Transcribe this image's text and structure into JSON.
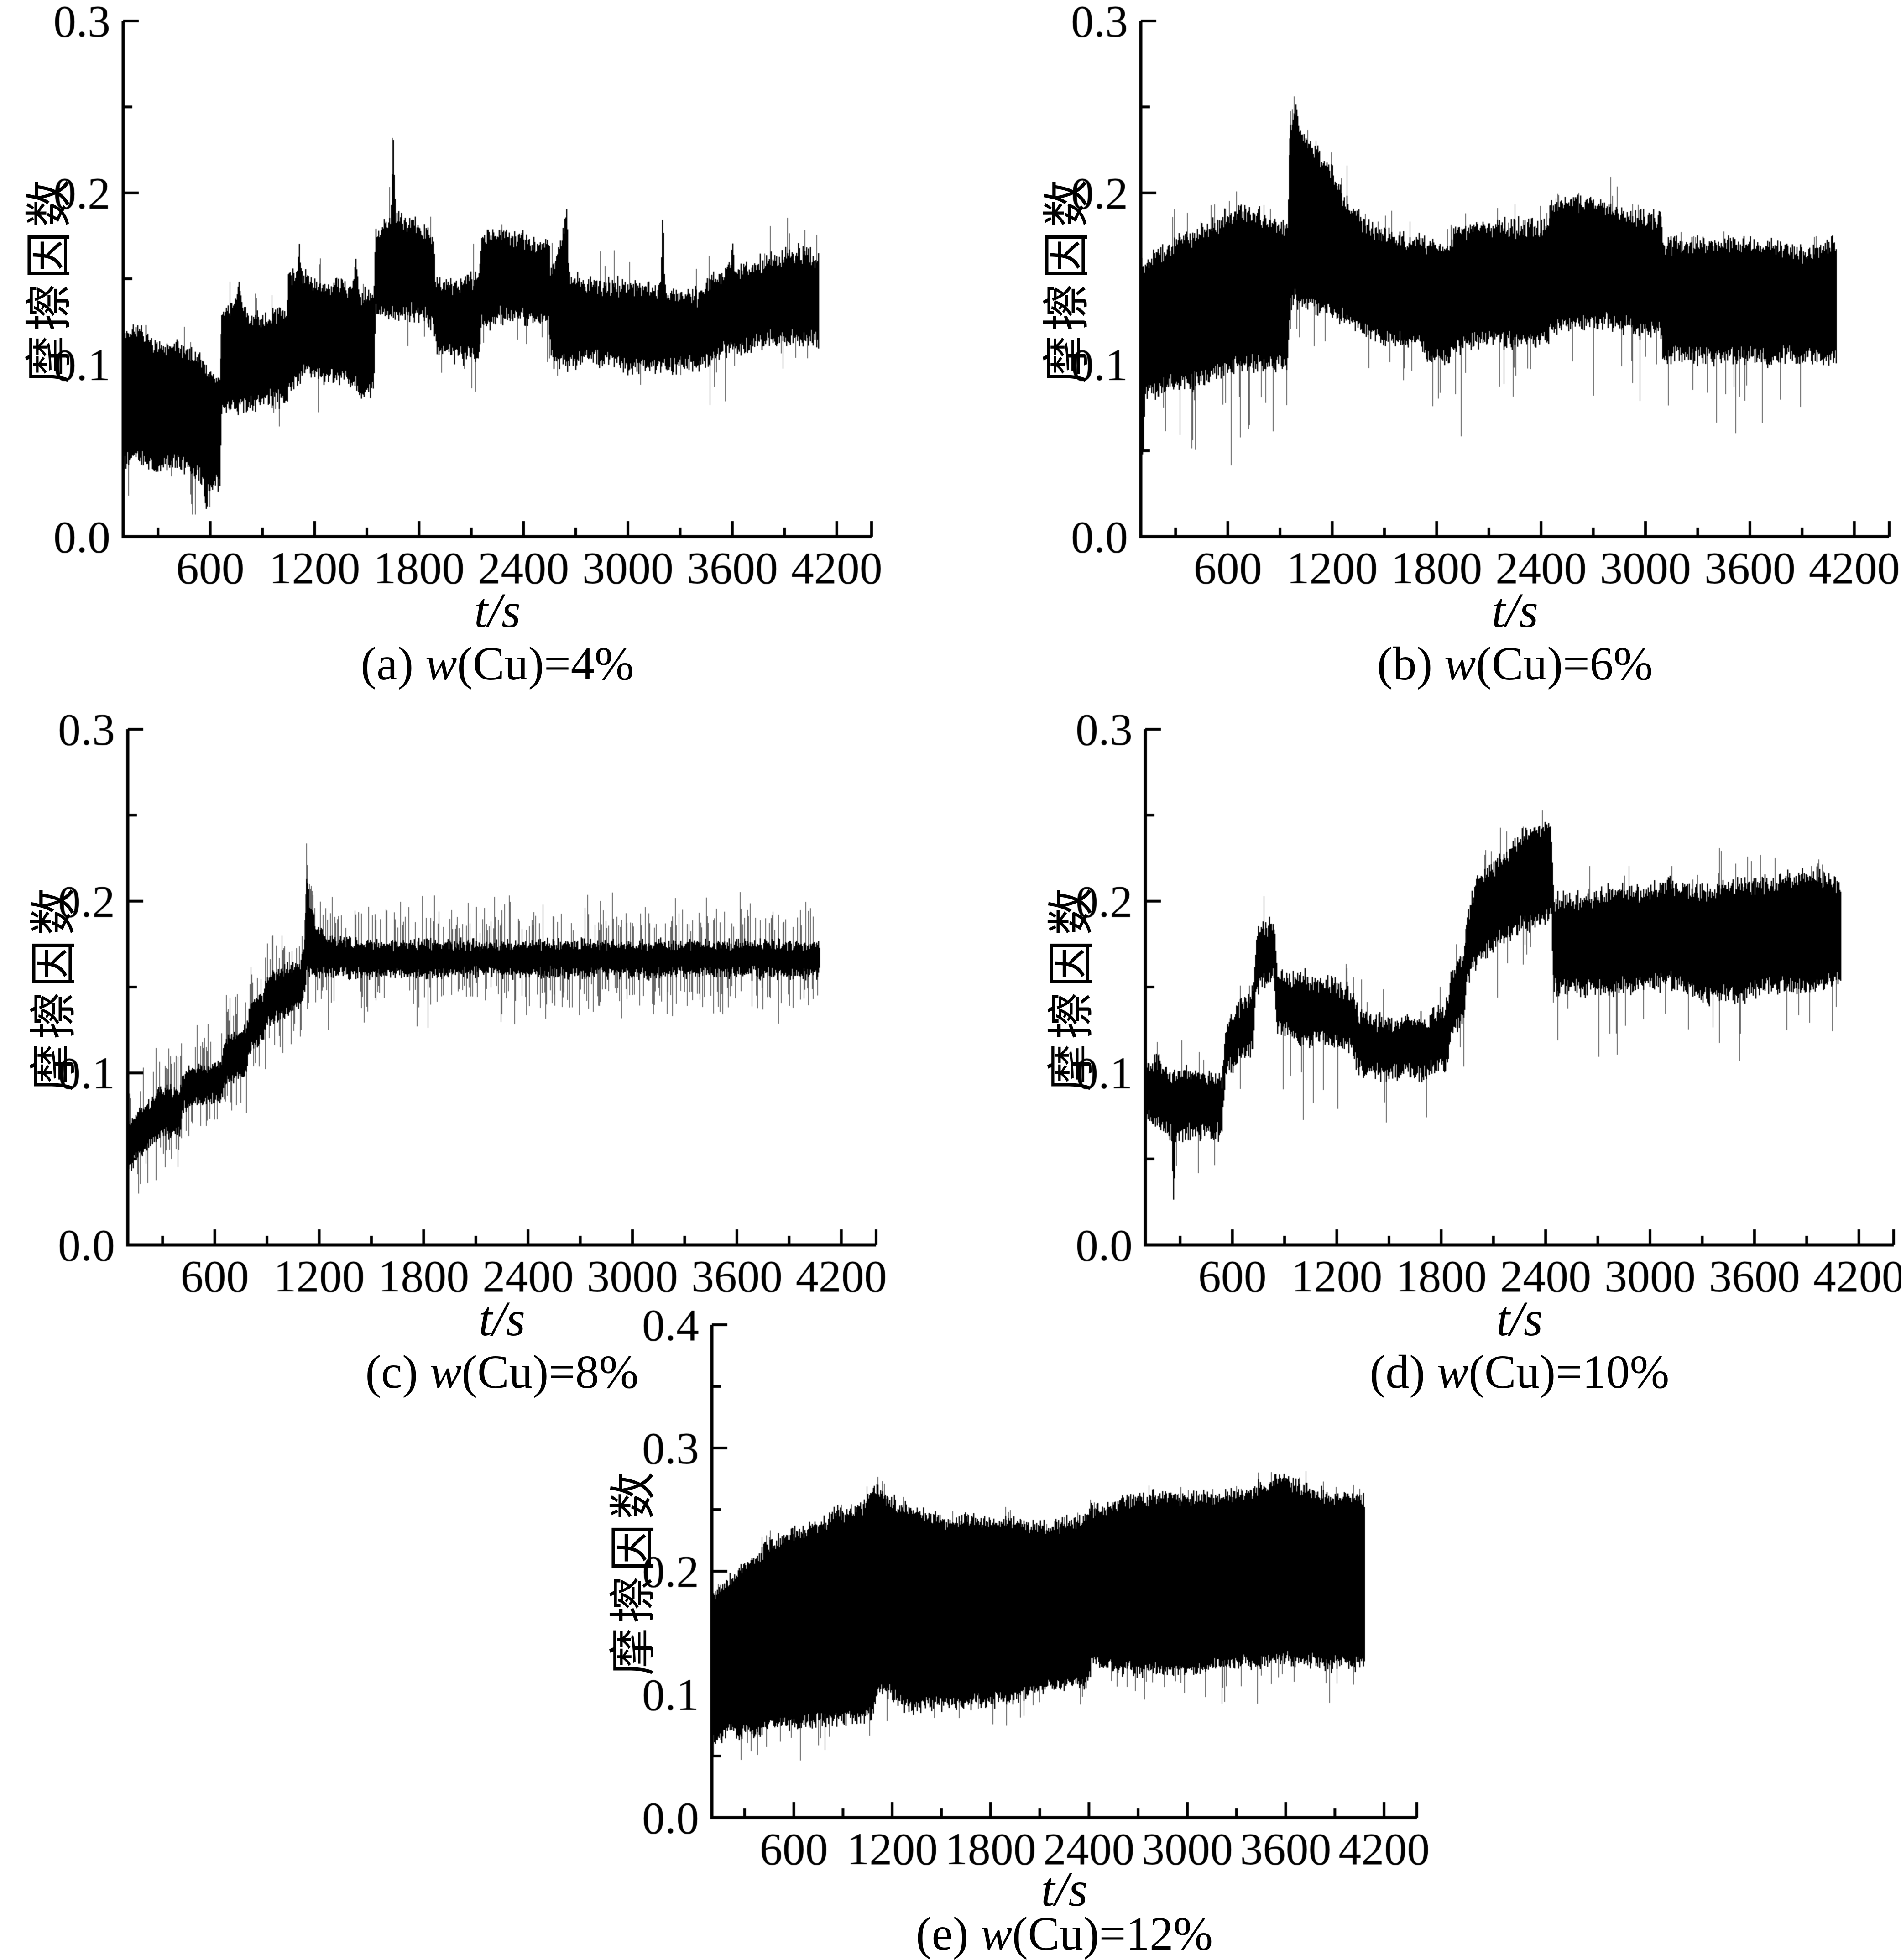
{
  "figure": {
    "ylabel": "摩擦因数",
    "xlabel": "t/s"
  },
  "chart_data": [
    {
      "id": "a",
      "type": "line",
      "title": "(a) w(Cu)=4%",
      "caption_pre": "(a) ",
      "caption_sym": "w",
      "caption_post": "(Cu)=4%",
      "xlabel": "t/s",
      "ylabel": "摩擦因数",
      "xlim": [
        100,
        4400
      ],
      "ylim": [
        0,
        0.3
      ],
      "xticks": [
        600,
        1200,
        1800,
        2400,
        3000,
        3600,
        4200
      ],
      "yticks": [
        0.0,
        0.1,
        0.2,
        0.3
      ],
      "x_minor_step": 300,
      "y_minor_step": 0.05,
      "grid": false,
      "legend": "none",
      "series_name": "friction coefficient envelope [t, min, max]",
      "envelope": [
        [
          100,
          0.045,
          0.115
        ],
        [
          200,
          0.045,
          0.12
        ],
        [
          300,
          0.04,
          0.11
        ],
        [
          400,
          0.045,
          0.11
        ],
        [
          500,
          0.04,
          0.105
        ],
        [
          560,
          0.035,
          0.1
        ],
        [
          575,
          0.01,
          0.095
        ],
        [
          590,
          0.03,
          0.095
        ],
        [
          650,
          0.03,
          0.09
        ],
        [
          658,
          0.03,
          0.09
        ],
        [
          665,
          0.075,
          0.13
        ],
        [
          750,
          0.075,
          0.135
        ],
        [
          760,
          0.075,
          0.15
        ],
        [
          790,
          0.075,
          0.13
        ],
        [
          900,
          0.08,
          0.125
        ],
        [
          1000,
          0.08,
          0.13
        ],
        [
          1040,
          0.08,
          0.13
        ],
        [
          1050,
          0.09,
          0.15
        ],
        [
          1100,
          0.09,
          0.155
        ],
        [
          1112,
          0.09,
          0.17
        ],
        [
          1130,
          0.095,
          0.15
        ],
        [
          1250,
          0.095,
          0.145
        ],
        [
          1420,
          0.09,
          0.145
        ],
        [
          1435,
          0.09,
          0.165
        ],
        [
          1460,
          0.085,
          0.14
        ],
        [
          1540,
          0.085,
          0.14
        ],
        [
          1550,
          0.13,
          0.175
        ],
        [
          1640,
          0.13,
          0.185
        ],
        [
          1652,
          0.13,
          0.23
        ],
        [
          1665,
          0.13,
          0.185
        ],
        [
          1800,
          0.13,
          0.18
        ],
        [
          1880,
          0.125,
          0.175
        ],
        [
          1895,
          0.11,
          0.15
        ],
        [
          2000,
          0.105,
          0.145
        ],
        [
          2100,
          0.105,
          0.15
        ],
        [
          2145,
          0.105,
          0.15
        ],
        [
          2158,
          0.125,
          0.175
        ],
        [
          2300,
          0.13,
          0.175
        ],
        [
          2500,
          0.125,
          0.17
        ],
        [
          2545,
          0.125,
          0.17
        ],
        [
          2558,
          0.105,
          0.15
        ],
        [
          2650,
          0.1,
          0.185
        ],
        [
          2665,
          0.1,
          0.15
        ],
        [
          2800,
          0.105,
          0.145
        ],
        [
          3000,
          0.1,
          0.145
        ],
        [
          3190,
          0.1,
          0.145
        ],
        [
          3200,
          0.1,
          0.185
        ],
        [
          3215,
          0.1,
          0.14
        ],
        [
          3400,
          0.1,
          0.14
        ],
        [
          3500,
          0.105,
          0.15
        ],
        [
          3590,
          0.11,
          0.155
        ],
        [
          3600,
          0.11,
          0.17
        ],
        [
          3615,
          0.11,
          0.155
        ],
        [
          3800,
          0.115,
          0.16
        ],
        [
          4000,
          0.115,
          0.165
        ],
        [
          4100,
          0.115,
          0.16
        ]
      ],
      "noise": {
        "prob": 0.05,
        "up": 0.028,
        "down": 0.03,
        "jitter": 0.007
      },
      "seed": 101
    },
    {
      "id": "b",
      "type": "line",
      "title": "(b) w(Cu)=6%",
      "caption_pre": "(b) ",
      "caption_sym": "w",
      "caption_post": "(Cu)=6%",
      "xlabel": "t/s",
      "ylabel": "摩擦因数",
      "xlim": [
        100,
        4400
      ],
      "ylim": [
        0,
        0.3
      ],
      "xticks": [
        600,
        1200,
        1800,
        2400,
        3000,
        3600,
        4200
      ],
      "yticks": [
        0.0,
        0.1,
        0.2,
        0.3
      ],
      "x_minor_step": 300,
      "y_minor_step": 0.05,
      "grid": false,
      "legend": "none",
      "series_name": "friction coefficient envelope [t, min, max]",
      "envelope": [
        [
          100,
          0.085,
          0.16
        ],
        [
          112,
          0.04,
          0.155
        ],
        [
          125,
          0.085,
          0.16
        ],
        [
          200,
          0.085,
          0.165
        ],
        [
          300,
          0.09,
          0.17
        ],
        [
          400,
          0.09,
          0.175
        ],
        [
          500,
          0.095,
          0.18
        ],
        [
          600,
          0.1,
          0.185
        ],
        [
          700,
          0.1,
          0.19
        ],
        [
          800,
          0.1,
          0.185
        ],
        [
          900,
          0.1,
          0.18
        ],
        [
          945,
          0.1,
          0.18
        ],
        [
          958,
          0.135,
          0.235
        ],
        [
          990,
          0.14,
          0.25
        ],
        [
          1012,
          0.135,
          0.235
        ],
        [
          1100,
          0.135,
          0.225
        ],
        [
          1200,
          0.13,
          0.21
        ],
        [
          1300,
          0.125,
          0.19
        ],
        [
          1400,
          0.12,
          0.18
        ],
        [
          1500,
          0.115,
          0.175
        ],
        [
          1700,
          0.115,
          0.17
        ],
        [
          1745,
          0.105,
          0.17
        ],
        [
          1860,
          0.105,
          0.165
        ],
        [
          1900,
          0.11,
          0.175
        ],
        [
          2000,
          0.115,
          0.18
        ],
        [
          2200,
          0.115,
          0.18
        ],
        [
          2440,
          0.115,
          0.18
        ],
        [
          2458,
          0.12,
          0.19
        ],
        [
          2600,
          0.125,
          0.195
        ],
        [
          2800,
          0.125,
          0.19
        ],
        [
          3000,
          0.12,
          0.185
        ],
        [
          3090,
          0.12,
          0.185
        ],
        [
          3102,
          0.105,
          0.17
        ],
        [
          3300,
          0.105,
          0.17
        ],
        [
          3500,
          0.105,
          0.17
        ],
        [
          3700,
          0.105,
          0.17
        ],
        [
          3900,
          0.105,
          0.165
        ],
        [
          4100,
          0.105,
          0.17
        ]
      ],
      "noise": {
        "prob": 0.07,
        "up": 0.022,
        "down": 0.055,
        "jitter": 0.007
      },
      "seed": 202
    },
    {
      "id": "c",
      "type": "line",
      "title": "(c) w(Cu)=8%",
      "caption_pre": "(c) ",
      "caption_sym": "w",
      "caption_post": "(Cu)=8%",
      "xlabel": "t/s",
      "ylabel": "摩擦因数",
      "xlim": [
        100,
        4400
      ],
      "ylim": [
        0,
        0.3
      ],
      "xticks": [
        600,
        1200,
        1800,
        2400,
        3000,
        3600,
        4200
      ],
      "yticks": [
        0.0,
        0.1,
        0.2,
        0.3
      ],
      "x_minor_step": 300,
      "y_minor_step": 0.05,
      "grid": false,
      "legend": "none",
      "series_name": "friction coefficient envelope [t, min, max]",
      "envelope": [
        [
          100,
          0.045,
          0.07
        ],
        [
          200,
          0.055,
          0.08
        ],
        [
          258,
          0.06,
          0.085
        ],
        [
          272,
          0.065,
          0.09
        ],
        [
          400,
          0.065,
          0.09
        ],
        [
          422,
          0.08,
          0.1
        ],
        [
          600,
          0.085,
          0.105
        ],
        [
          640,
          0.085,
          0.105
        ],
        [
          662,
          0.095,
          0.12
        ],
        [
          780,
          0.1,
          0.125
        ],
        [
          802,
          0.115,
          0.14
        ],
        [
          880,
          0.12,
          0.145
        ],
        [
          897,
          0.13,
          0.155
        ],
        [
          1000,
          0.135,
          0.16
        ],
        [
          1100,
          0.14,
          0.165
        ],
        [
          1118,
          0.15,
          0.175
        ],
        [
          1128,
          0.16,
          0.215
        ],
        [
          1142,
          0.16,
          0.2
        ],
        [
          1180,
          0.158,
          0.185
        ],
        [
          1250,
          0.158,
          0.178
        ],
        [
          1400,
          0.158,
          0.175
        ],
        [
          2000,
          0.158,
          0.175
        ],
        [
          2600,
          0.158,
          0.175
        ],
        [
          3200,
          0.158,
          0.175
        ],
        [
          3800,
          0.158,
          0.175
        ],
        [
          4080,
          0.158,
          0.175
        ]
      ],
      "noise": {
        "prob": 0.32,
        "up": 0.034,
        "down": 0.032,
        "jitter": 0.0045
      },
      "seed": 303
    },
    {
      "id": "d",
      "type": "line",
      "title": "(d) w(Cu)=10%",
      "caption_pre": "(d) ",
      "caption_sym": "w",
      "caption_post": "(Cu)=10%",
      "xlabel": "t/s",
      "ylabel": "摩擦因数",
      "xlim": [
        100,
        4400
      ],
      "ylim": [
        0,
        0.3
      ],
      "xticks": [
        600,
        1200,
        1800,
        2400,
        3000,
        3600,
        4200
      ],
      "yticks": [
        0.0,
        0.1,
        0.2,
        0.3
      ],
      "x_minor_step": 300,
      "y_minor_step": 0.05,
      "grid": false,
      "legend": "none",
      "series_name": "friction coefficient envelope [t, min, max]",
      "envelope": [
        [
          100,
          0.075,
          0.105
        ],
        [
          200,
          0.07,
          0.105
        ],
        [
          252,
          0.065,
          0.1
        ],
        [
          262,
          0.02,
          0.1
        ],
        [
          275,
          0.065,
          0.1
        ],
        [
          400,
          0.065,
          0.1
        ],
        [
          500,
          0.065,
          0.095
        ],
        [
          540,
          0.065,
          0.095
        ],
        [
          562,
          0.1,
          0.125
        ],
        [
          650,
          0.11,
          0.14
        ],
        [
          720,
          0.115,
          0.145
        ],
        [
          738,
          0.15,
          0.18
        ],
        [
          800,
          0.155,
          0.185
        ],
        [
          840,
          0.155,
          0.185
        ],
        [
          858,
          0.125,
          0.155
        ],
        [
          1000,
          0.12,
          0.155
        ],
        [
          1200,
          0.12,
          0.15
        ],
        [
          1290,
          0.115,
          0.145
        ],
        [
          1312,
          0.105,
          0.135
        ],
        [
          1400,
          0.1,
          0.13
        ],
        [
          1700,
          0.1,
          0.13
        ],
        [
          1800,
          0.105,
          0.135
        ],
        [
          1840,
          0.105,
          0.14
        ],
        [
          1858,
          0.125,
          0.16
        ],
        [
          1930,
          0.13,
          0.165
        ],
        [
          1948,
          0.155,
          0.19
        ],
        [
          2000,
          0.165,
          0.21
        ],
        [
          2100,
          0.175,
          0.22
        ],
        [
          2250,
          0.185,
          0.235
        ],
        [
          2400,
          0.19,
          0.245
        ],
        [
          2430,
          0.195,
          0.245
        ],
        [
          2448,
          0.15,
          0.2
        ],
        [
          2600,
          0.15,
          0.2
        ],
        [
          2800,
          0.15,
          0.205
        ],
        [
          3000,
          0.15,
          0.205
        ],
        [
          3100,
          0.155,
          0.21
        ],
        [
          3300,
          0.145,
          0.205
        ],
        [
          3500,
          0.145,
          0.21
        ],
        [
          3700,
          0.15,
          0.21
        ],
        [
          3900,
          0.15,
          0.215
        ],
        [
          4100,
          0.155,
          0.21
        ]
      ],
      "noise": {
        "prob": 0.07,
        "up": 0.024,
        "down": 0.05,
        "jitter": 0.007
      },
      "seed": 404
    },
    {
      "id": "e",
      "type": "line",
      "title": "(e) w(Cu)=12%",
      "caption_pre": "(e) ",
      "caption_sym": "w",
      "caption_post": "(Cu)=12%",
      "xlabel": "t/s",
      "ylabel": "摩擦因数",
      "xlim": [
        100,
        4400
      ],
      "ylim": [
        0,
        0.4
      ],
      "xticks": [
        600,
        1200,
        1800,
        2400,
        3000,
        3600,
        4200
      ],
      "yticks": [
        0.0,
        0.1,
        0.2,
        0.3,
        0.4
      ],
      "x_minor_step": 300,
      "y_minor_step": 0.05,
      "grid": false,
      "legend": "none",
      "series_name": "friction coefficient envelope [t, min, max]",
      "envelope": [
        [
          100,
          0.06,
          0.175
        ],
        [
          150,
          0.065,
          0.185
        ],
        [
          200,
          0.07,
          0.19
        ],
        [
          300,
          0.07,
          0.205
        ],
        [
          400,
          0.072,
          0.215
        ],
        [
          500,
          0.075,
          0.225
        ],
        [
          600,
          0.075,
          0.23
        ],
        [
          700,
          0.078,
          0.235
        ],
        [
          800,
          0.078,
          0.24
        ],
        [
          850,
          0.08,
          0.25
        ],
        [
          900,
          0.08,
          0.245
        ],
        [
          1000,
          0.08,
          0.25
        ],
        [
          1050,
          0.082,
          0.255
        ],
        [
          1080,
          0.085,
          0.27
        ],
        [
          1120,
          0.105,
          0.265
        ],
        [
          1200,
          0.1,
          0.255
        ],
        [
          1300,
          0.09,
          0.25
        ],
        [
          1500,
          0.092,
          0.24
        ],
        [
          1800,
          0.095,
          0.24
        ],
        [
          2000,
          0.1,
          0.24
        ],
        [
          2100,
          0.105,
          0.235
        ],
        [
          2300,
          0.108,
          0.24
        ],
        [
          2390,
          0.11,
          0.245
        ],
        [
          2420,
          0.125,
          0.25
        ],
        [
          2600,
          0.12,
          0.255
        ],
        [
          2800,
          0.12,
          0.26
        ],
        [
          3000,
          0.12,
          0.26
        ],
        [
          3200,
          0.124,
          0.26
        ],
        [
          3400,
          0.125,
          0.265
        ],
        [
          3550,
          0.13,
          0.275
        ],
        [
          3700,
          0.128,
          0.268
        ],
        [
          3850,
          0.125,
          0.262
        ],
        [
          4000,
          0.125,
          0.26
        ],
        [
          4080,
          0.125,
          0.258
        ]
      ],
      "noise": {
        "prob": 0.07,
        "up": 0.014,
        "down": 0.04,
        "jitter": 0.008
      },
      "seed": 505
    }
  ]
}
